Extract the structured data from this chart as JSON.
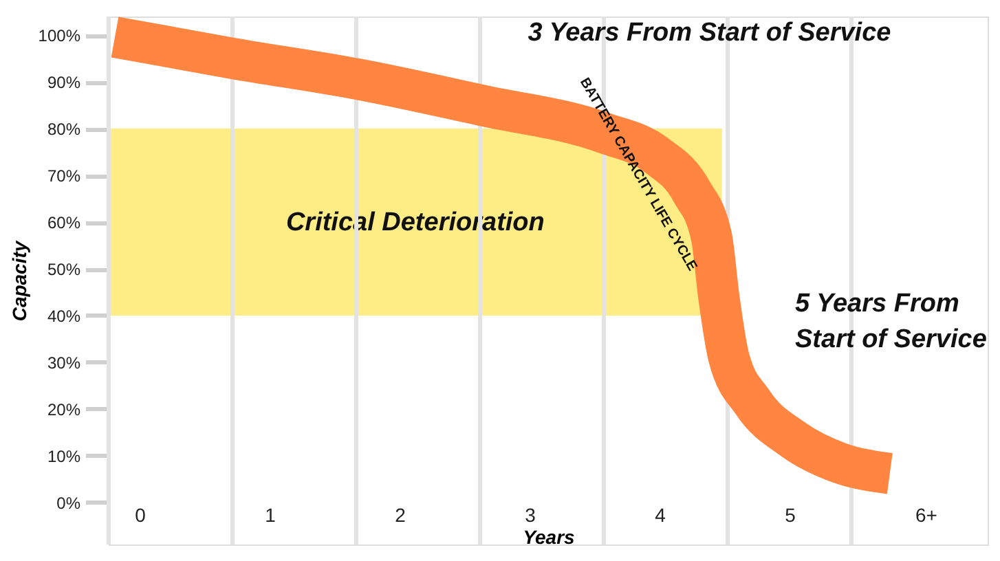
{
  "chart_data": {
    "type": "line",
    "xlabel": "Years",
    "ylabel": "Capacity",
    "xlim": [
      0,
      7.1
    ],
    "ylim": [
      -9,
      104
    ],
    "xticks": [
      {
        "value": 0.25,
        "label": "0"
      },
      {
        "value": 1.3,
        "label": "1"
      },
      {
        "value": 2.35,
        "label": "2"
      },
      {
        "value": 3.4,
        "label": "3"
      },
      {
        "value": 4.45,
        "label": "4"
      },
      {
        "value": 5.5,
        "label": "5"
      },
      {
        "value": 6.6,
        "label": "6+"
      }
    ],
    "yticks": [
      {
        "value": 0,
        "label": "0%"
      },
      {
        "value": 10,
        "label": "10%"
      },
      {
        "value": 20,
        "label": "20%"
      },
      {
        "value": 30,
        "label": "30%"
      },
      {
        "value": 40,
        "label": "40%"
      },
      {
        "value": 50,
        "label": "50%"
      },
      {
        "value": 60,
        "label": "60%"
      },
      {
        "value": 70,
        "label": "70%"
      },
      {
        "value": 80,
        "label": "80%"
      },
      {
        "value": 90,
        "label": "90%"
      },
      {
        "value": 100,
        "label": "100%"
      }
    ],
    "series": [
      {
        "name": "BATTERY CAPACITY LIFE CYCLE",
        "color": "#ff8540",
        "x": [
          0.05,
          1.01,
          2.01,
          3.01,
          4.01,
          4.42,
          4.71,
          4.87,
          4.93,
          5.01,
          5.2,
          5.53,
          5.9,
          6.31
        ],
        "values": [
          99.6,
          95,
          90.6,
          85,
          79,
          74.4,
          66.5,
          56.8,
          43.8,
          31,
          21.5,
          13.5,
          8.5,
          6.2
        ]
      }
    ],
    "bands": [
      {
        "axis": "y",
        "from": 40,
        "to": 80,
        "label": "Critical Deterioration",
        "color": "#feec84"
      }
    ],
    "ref_lines": [
      {
        "axis": "x",
        "value": 0,
        "color": "#e3e3e3"
      },
      {
        "axis": "x",
        "value": 1,
        "color": "#e3e3e3"
      },
      {
        "axis": "x",
        "value": 2,
        "color": "#e3e3e3"
      },
      {
        "axis": "x",
        "value": 3,
        "color": "#e3e3e3"
      },
      {
        "axis": "x",
        "value": 4,
        "color": "#e3e3e3"
      },
      {
        "axis": "x",
        "value": 5,
        "color": "#e3e3e3"
      },
      {
        "axis": "x",
        "value": 6,
        "color": "#e3e3e3"
      }
    ],
    "annotations": [
      {
        "text": "3 Years From Start of Service",
        "x": 3.23,
        "y": 87.6
      },
      {
        "text": "5 Years From\nStart of Service",
        "x": 5.1,
        "y": 38
      }
    ],
    "grid": false,
    "marker": "none",
    "line_style": "solid"
  }
}
